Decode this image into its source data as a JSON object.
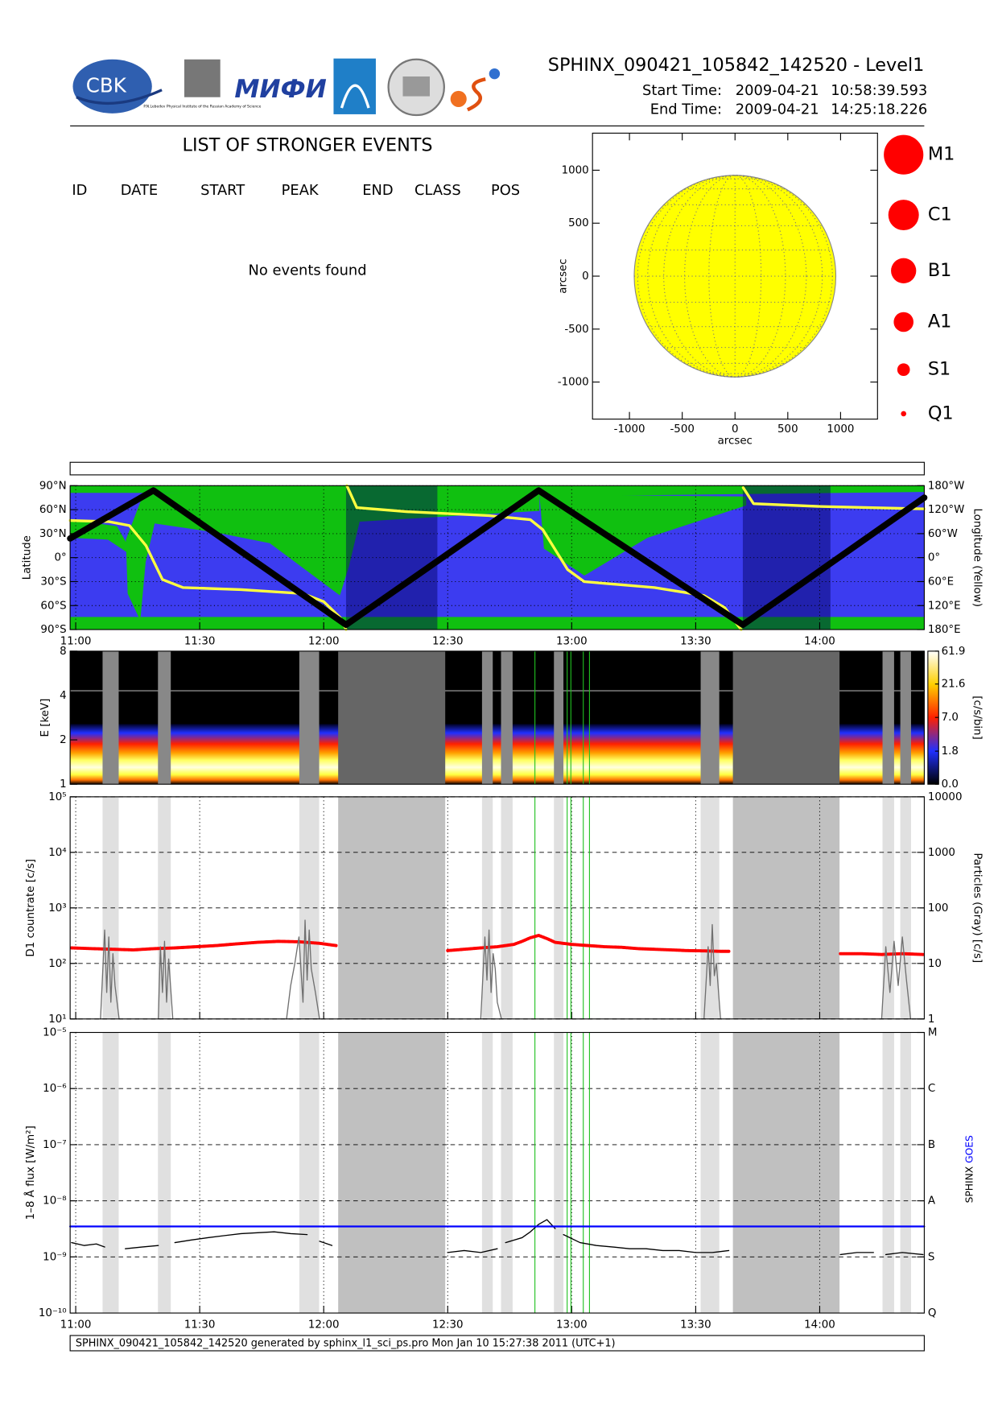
{
  "header": {
    "title": "SPHINX_090421_105842_142520 - Level1",
    "start_label": "Start Time:",
    "start_date": "2009-04-21",
    "start_time": "10:58:39.593",
    "end_label": "End Time:",
    "end_date": "2009-04-21",
    "end_time": "14:25:18.226",
    "logo_cbk": "CBK",
    "logo_lebedev": "P.N.Lebedev Physical Institute of the Russian Academy of Science",
    "logo_mifi": "МИФИ"
  },
  "events": {
    "title": "LIST OF STRONGER EVENTS",
    "columns": [
      "ID",
      "DATE",
      "START",
      "PEAK",
      "END",
      "CLASS",
      "POS"
    ],
    "message": "No events found"
  },
  "class_legend": [
    "M1",
    "C1",
    "B1",
    "A1",
    "S1",
    "Q1"
  ],
  "footer": "SPHINX_090421_105842_142520 generated by sphinx_l1_sci_ps.pro Mon Jan 10 15:27:38 2011 (UTC+1)",
  "chart_data": [
    {
      "type": "disk",
      "xlim": [
        -1350,
        1350
      ],
      "ylim": [
        -1350,
        1350
      ],
      "xticks": [
        -1000,
        -500,
        0,
        500,
        1000
      ],
      "yticks": [
        -1000,
        -500,
        0,
        500,
        1000
      ],
      "xlabel": "arcsec",
      "ylabel": "arcsec",
      "radius": 955,
      "color": "#ffff00"
    },
    {
      "type": "track",
      "xlim": [
        -1.35,
        205.3
      ],
      "ylim": [
        -90,
        90
      ],
      "y2lim": [
        -180,
        180
      ],
      "grid": true,
      "xticks": [
        {
          "value": 0,
          "label": "11:00"
        },
        {
          "value": 30,
          "label": "11:30"
        },
        {
          "value": 60,
          "label": "12:00"
        },
        {
          "value": 90,
          "label": "12:30"
        },
        {
          "value": 120,
          "label": "13:00"
        },
        {
          "value": 150,
          "label": "13:30"
        },
        {
          "value": 180,
          "label": "14:00"
        }
      ],
      "yticks": [
        {
          "value": 90,
          "label": "90°N"
        },
        {
          "value": 60,
          "label": "60°N"
        },
        {
          "value": 30,
          "label": "30°N"
        },
        {
          "value": 0,
          "label": "0°"
        },
        {
          "value": -30,
          "label": "30°S"
        },
        {
          "value": -60,
          "label": "60°S"
        },
        {
          "value": -90,
          "label": "90°S"
        }
      ],
      "y2ticks": [
        {
          "value": 180,
          "label": "180°W"
        },
        {
          "value": 120,
          "label": "120°W"
        },
        {
          "value": 60,
          "label": "60°W"
        },
        {
          "value": 0,
          "label": "0°"
        },
        {
          "value": -60,
          "label": "60°E"
        },
        {
          "value": -120,
          "label": "120°E"
        },
        {
          "value": -180,
          "label": "180°E"
        }
      ],
      "ylabel": "Latitude",
      "y2label": "Longitude (Yellow)",
      "eclipse": [
        [
          65.4,
          87.5
        ],
        [
          161.4,
          182.6
        ]
      ],
      "series": [
        {
          "color": "#000000",
          "x": [
            -1.35,
            18.8,
            65.4,
            112,
            161.4,
            205.3
          ],
          "values": [
            24,
            84,
            -84,
            84,
            -84,
            75
          ]
        },
        {
          "color": "#ffff40",
          "axis": "y2",
          "x": [
            -1.35,
            8,
            13,
            17,
            21,
            26,
            40,
            55,
            60,
            64,
            65.4,
            65.5,
            65.6,
            68,
            80,
            100,
            110,
            113,
            116,
            119,
            123,
            140,
            152,
            157,
            161,
            161.3,
            161.5,
            164,
            180,
            205.3
          ],
          "values": [
            93,
            90,
            80,
            30,
            -55,
            -75,
            -80,
            -90,
            -110,
            -150,
            -180,
            null,
            180,
            125,
            115,
            105,
            95,
            70,
            20,
            -30,
            -60,
            -75,
            -95,
            -125,
            -180,
            null,
            175,
            135,
            128,
            122
          ]
        }
      ]
    },
    {
      "type": "spectrogram",
      "xlim": [
        -1.35,
        205.3
      ],
      "ylim": [
        1,
        8
      ],
      "log_y": true,
      "yticks": [
        1,
        2,
        4,
        8
      ],
      "ylabel": "E [keV]",
      "colorbar": {
        "clim": [
          0,
          61.9
        ],
        "ticks": [
          61.9,
          21.6,
          {
            "value": 7,
            "label": "7.0"
          },
          1.8,
          {
            "value": 0,
            "label": "0.0"
          }
        ],
        "label": "[c/s/bin]"
      },
      "light_gaps": [
        [
          6.5,
          10.4
        ],
        [
          19.9,
          23
        ],
        [
          54.1,
          58.9
        ],
        [
          98.3,
          100.9
        ],
        [
          102.9,
          105.7
        ],
        [
          115.7,
          118
        ],
        [
          151.2,
          155.7
        ],
        [
          195.2,
          198
        ],
        [
          199.5,
          202.1
        ]
      ],
      "dark_gaps": [
        [
          63.5,
          89.4
        ],
        [
          159,
          184.8
        ]
      ],
      "flare_lines": [
        111.1,
        118.9,
        119.8,
        122.8,
        124.3
      ]
    },
    {
      "type": "line",
      "xlim": [
        -1.35,
        205.3
      ],
      "ylim": [
        10,
        100000
      ],
      "log_y": true,
      "y2lim": [
        1,
        10000
      ],
      "grid": true,
      "yticks": [
        {
          "value": 10,
          "label": "10¹"
        },
        {
          "value": 100,
          "label": "10²"
        },
        {
          "value": 1000,
          "label": "10³"
        },
        {
          "value": 10000,
          "label": "10⁴"
        },
        {
          "value": 100000,
          "label": "10⁵"
        }
      ],
      "y2ticks": [
        1,
        10,
        100,
        1000,
        10000
      ],
      "ylabel": "D1 countrate [c/s]",
      "y2label": "Particles (Gray) [c/s]",
      "series": [
        {
          "color": "#ff0000",
          "x": [
            -1,
            4,
            9,
            14,
            19,
            24,
            29,
            34,
            39,
            44,
            49,
            54,
            59,
            63,
            65,
            90,
            94,
            98,
            102,
            106,
            108,
            110,
            112,
            114,
            116,
            120,
            124,
            128,
            132,
            136,
            140,
            144,
            148,
            152,
            156,
            158,
            160,
            185,
            190,
            195,
            200,
            205
          ],
          "values": [
            190,
            185,
            180,
            175,
            185,
            190,
            200,
            210,
            225,
            240,
            250,
            245,
            230,
            210,
            null,
            170,
            180,
            190,
            200,
            220,
            250,
            290,
            320,
            280,
            240,
            220,
            210,
            200,
            195,
            185,
            180,
            175,
            170,
            168,
            165,
            165,
            null,
            150,
            150,
            145,
            150,
            145
          ]
        },
        {
          "color": "#707070",
          "axis": "y2",
          "x": [
            6,
            7,
            7.5,
            8,
            8.5,
            9,
            9.5,
            10.5,
            11,
            20,
            20.5,
            21,
            21.5,
            22,
            22.5,
            23.5,
            24,
            51,
            52,
            53,
            54,
            55,
            55.5,
            56,
            56.5,
            57,
            58,
            59,
            60,
            98,
            99,
            99.5,
            100,
            100.5,
            101,
            101.5,
            102,
            103,
            104,
            152,
            153,
            153.5,
            154,
            154.5,
            155,
            156,
            157,
            195,
            196,
            197,
            198,
            199,
            200,
            201,
            202
          ],
          "values": [
            1,
            40,
            3,
            30,
            2,
            15,
            4,
            1,
            null,
            1,
            20,
            3,
            25,
            2,
            12,
            1,
            null,
            1,
            4,
            10,
            30,
            2,
            60,
            5,
            40,
            8,
            3,
            1,
            null,
            1,
            30,
            5,
            40,
            3,
            15,
            8,
            2,
            1,
            null,
            1,
            20,
            4,
            50,
            6,
            10,
            1,
            null,
            1,
            20,
            3,
            25,
            4,
            30,
            5,
            1
          ]
        }
      ]
    },
    {
      "type": "line",
      "xlim": [
        -1.35,
        205.3
      ],
      "ylim": [
        1e-10,
        1e-05
      ],
      "log_y": true,
      "y2lim": [
        1e-10,
        1e-05
      ],
      "grid": true,
      "xticks": [
        {
          "value": 0,
          "label": "11:00"
        },
        {
          "value": 30,
          "label": "11:30"
        },
        {
          "value": 60,
          "label": "12:00"
        },
        {
          "value": 90,
          "label": "12:30"
        },
        {
          "value": 120,
          "label": "13:00"
        },
        {
          "value": 150,
          "label": "13:30"
        },
        {
          "value": 180,
          "label": "14:00"
        }
      ],
      "yticks": [
        {
          "value": 1e-10,
          "label": "10⁻¹⁰"
        },
        {
          "value": 1e-09,
          "label": "10⁻⁹"
        },
        {
          "value": 1e-08,
          "label": "10⁻⁸"
        },
        {
          "value": 1e-07,
          "label": "10⁻⁷"
        },
        {
          "value": 1e-06,
          "label": "10⁻⁶"
        },
        {
          "value": 1e-05,
          "label": "10⁻⁵"
        }
      ],
      "y2ticks": [
        {
          "value": 1e-05,
          "label": "M"
        },
        {
          "value": 1e-06,
          "label": "C"
        },
        {
          "value": 1e-07,
          "label": "B"
        },
        {
          "value": 1e-08,
          "label": "A"
        },
        {
          "value": 1e-09,
          "label": "S"
        },
        {
          "value": 1e-10,
          "label": "Q"
        }
      ],
      "ylabel": "1–8 Å flux [W/m²]",
      "series": [
        {
          "name": "SPHINX",
          "color": "#000000",
          "x": [
            -1,
            2,
            5,
            7,
            8,
            12,
            16,
            20,
            22,
            24,
            28,
            32,
            36,
            40,
            44,
            48,
            52,
            56,
            58,
            59,
            62,
            63,
            90,
            94,
            98,
            102,
            103,
            104,
            108,
            110,
            112,
            114,
            116,
            117,
            118,
            122,
            126,
            130,
            134,
            138,
            142,
            146,
            150,
            154,
            158,
            159,
            185,
            189,
            193,
            194,
            196,
            200,
            205
          ],
          "values": [
            1.8e-09,
            1.6e-09,
            1.7e-09,
            1.5e-09,
            null,
            1.4e-09,
            1.5e-09,
            1.6e-09,
            null,
            1.8e-09,
            2e-09,
            2.2e-09,
            2.4e-09,
            2.6e-09,
            2.7e-09,
            2.8e-09,
            2.6e-09,
            2.5e-09,
            null,
            1.9e-09,
            1.6e-09,
            null,
            1.2e-09,
            1.3e-09,
            1.2e-09,
            1.4e-09,
            null,
            1.8e-09,
            2.2e-09,
            2.8e-09,
            3.8e-09,
            4.6e-09,
            3.2e-09,
            null,
            2.5e-09,
            1.8e-09,
            1.6e-09,
            1.5e-09,
            1.4e-09,
            1.4e-09,
            1.3e-09,
            1.3e-09,
            1.2e-09,
            1.2e-09,
            1.3e-09,
            null,
            1.1e-09,
            1.2e-09,
            1.2e-09,
            null,
            1.1e-09,
            1.2e-09,
            1.1e-09
          ]
        },
        {
          "name": "GOES",
          "color": "#0000ff",
          "x": [
            -1.35,
            205.3
          ],
          "values": [
            3.5e-09,
            3.5e-09
          ]
        }
      ]
    }
  ]
}
